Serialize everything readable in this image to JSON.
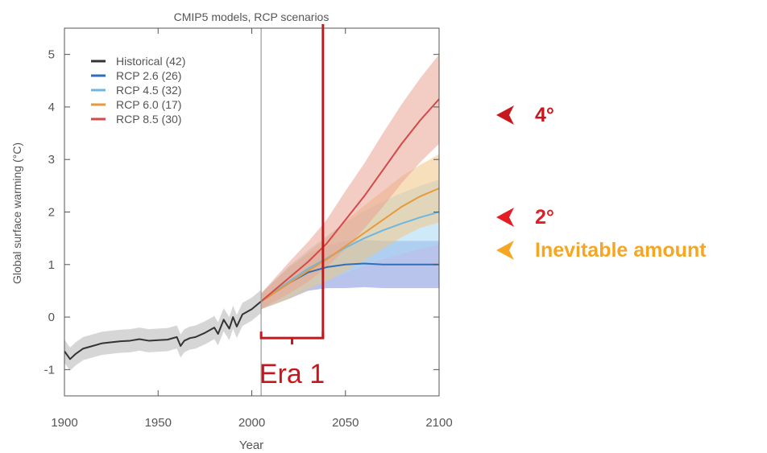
{
  "chart_data": {
    "type": "line",
    "title": "CMIP5 models, RCP scenarios",
    "xlabel": "Year",
    "ylabel": "Global surface warming (°C)",
    "xlim": [
      1900,
      2100
    ],
    "ylim": [
      -1.5,
      5.5
    ],
    "xticks": [
      1900,
      1950,
      2000,
      2050,
      2100
    ],
    "yticks": [
      -1,
      0,
      1,
      2,
      3,
      4,
      5
    ],
    "grid": false,
    "legend_position": "top-left",
    "legend": [
      {
        "label": "Historical (42)",
        "color": "#333333"
      },
      {
        "label": "RCP 2.6 (26)",
        "color": "#2f6fb8"
      },
      {
        "label": "RCP 4.5 (32)",
        "color": "#6fb7e3"
      },
      {
        "label": "RCP 6.0 (17)",
        "color": "#e69a3c"
      },
      {
        "label": "RCP 8.5 (30)",
        "color": "#d24a4a"
      }
    ],
    "series": [
      {
        "name": "Historical (42)",
        "color": "#333333",
        "band_color": "#b5b5b5",
        "x": [
          1900,
          1903,
          1906,
          1910,
          1915,
          1920,
          1925,
          1930,
          1935,
          1940,
          1945,
          1950,
          1955,
          1960,
          1962,
          1964,
          1967,
          1970,
          1975,
          1980,
          1982,
          1985,
          1988,
          1990,
          1992,
          1995,
          2000,
          2005
        ],
        "y": [
          -0.65,
          -0.8,
          -0.7,
          -0.6,
          -0.55,
          -0.5,
          -0.48,
          -0.46,
          -0.45,
          -0.42,
          -0.45,
          -0.44,
          -0.43,
          -0.38,
          -0.55,
          -0.45,
          -0.4,
          -0.38,
          -0.3,
          -0.2,
          -0.32,
          -0.05,
          -0.22,
          0.0,
          -0.18,
          0.05,
          0.15,
          0.3
        ],
        "band": 0.22
      },
      {
        "name": "RCP 2.6 (26)",
        "color": "#2f6fb8",
        "band_color": "#7d94dc",
        "x": [
          2005,
          2020,
          2030,
          2040,
          2050,
          2060,
          2070,
          2080,
          2090,
          2100
        ],
        "y": [
          0.3,
          0.65,
          0.85,
          0.95,
          1.0,
          1.02,
          1.0,
          1.0,
          1.0,
          1.0
        ],
        "band": [
          0.15,
          0.3,
          0.35,
          0.4,
          0.45,
          0.45,
          0.45,
          0.45,
          0.45,
          0.45
        ]
      },
      {
        "name": "RCP 4.5 (32)",
        "color": "#6fb7e3",
        "band_color": "#a6d9f2",
        "x": [
          2005,
          2020,
          2030,
          2040,
          2050,
          2060,
          2070,
          2080,
          2090,
          2100
        ],
        "y": [
          0.3,
          0.68,
          0.92,
          1.12,
          1.32,
          1.5,
          1.65,
          1.78,
          1.9,
          2.0
        ],
        "band": [
          0.15,
          0.3,
          0.35,
          0.42,
          0.48,
          0.52,
          0.55,
          0.58,
          0.6,
          0.62
        ]
      },
      {
        "name": "RCP 6.0 (17)",
        "color": "#e69a3c",
        "band_color": "#f1c585",
        "x": [
          2005,
          2020,
          2030,
          2040,
          2050,
          2060,
          2070,
          2080,
          2090,
          2100
        ],
        "y": [
          0.3,
          0.65,
          0.88,
          1.1,
          1.35,
          1.6,
          1.85,
          2.1,
          2.3,
          2.45
        ],
        "band": [
          0.15,
          0.3,
          0.35,
          0.42,
          0.48,
          0.52,
          0.55,
          0.58,
          0.6,
          0.65
        ]
      },
      {
        "name": "RCP 8.5 (30)",
        "color": "#d24a4a",
        "band_color": "#eaa392",
        "x": [
          2005,
          2020,
          2030,
          2040,
          2050,
          2060,
          2070,
          2080,
          2090,
          2100
        ],
        "y": [
          0.3,
          0.75,
          1.05,
          1.4,
          1.85,
          2.3,
          2.8,
          3.3,
          3.75,
          4.15
        ],
        "band": [
          0.15,
          0.3,
          0.38,
          0.45,
          0.55,
          0.62,
          0.7,
          0.75,
          0.8,
          0.85
        ]
      }
    ],
    "annotations": {
      "reference_line_year": 2005,
      "era_end_year": 2038,
      "era_bracket_y": -0.4,
      "era_label": "Era 1",
      "era_color": "#c8161d"
    }
  },
  "side_annotations": [
    {
      "label": "4°",
      "color": "#c8161d",
      "arrow_icon": "left-arrow-icon"
    },
    {
      "label": "2°",
      "color": "#e51c23",
      "arrow_icon": "left-arrow-icon"
    },
    {
      "label": "Inevitable amount",
      "color": "#f5a623",
      "arrow_icon": "left-arrow-icon"
    }
  ]
}
